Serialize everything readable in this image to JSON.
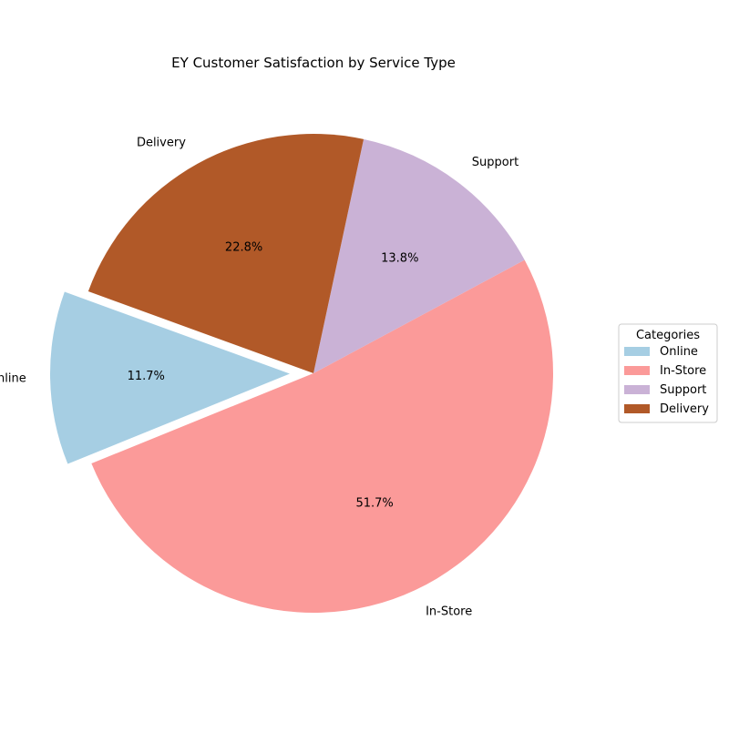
{
  "chart_data": {
    "type": "pie",
    "title": "EY Customer Satisfaction by Service Type",
    "categories": [
      "Online",
      "In-Store",
      "Support",
      "Delivery"
    ],
    "values": [
      11.7,
      51.7,
      13.8,
      22.8
    ],
    "percent_labels": [
      "11.7%",
      "51.7%",
      "13.8%",
      "22.8%"
    ],
    "colors": [
      "#a6cee3",
      "#fb9a99",
      "#cab2d6",
      "#b15928"
    ],
    "exploded": [
      "Online"
    ],
    "legend": {
      "title": "Categories",
      "placement": "right"
    }
  }
}
